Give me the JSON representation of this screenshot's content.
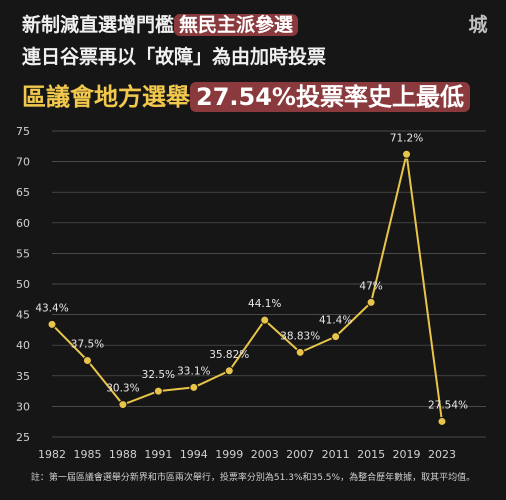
{
  "headline": {
    "line1_plain": "新制減直選增門檻",
    "line1_highlight": "無民主派參選",
    "line2": "連日谷票再以「故障」為由加時投票",
    "line3_plain": "區議會地方選舉",
    "line3_highlight": "27.54%投票率史上最低"
  },
  "logo_text": "城",
  "footnote": "註：第一屆區議會選舉分新界和市區兩次舉行，投票率分別為51.3%和35.5%，為整合歷年數據，取其平均值。",
  "colors": {
    "background": "#161616",
    "line": "#e8c44a",
    "highlight_box": "#8a3a3c",
    "headline_accent": "#f2c94c",
    "grid": "#5a5a5a"
  },
  "chart_data": {
    "type": "line",
    "x": [
      "1982",
      "1985",
      "1988",
      "1991",
      "1994",
      "1999",
      "2003",
      "2007",
      "2011",
      "2015",
      "2019",
      "2023"
    ],
    "values": [
      43.4,
      37.5,
      30.3,
      32.5,
      33.1,
      35.82,
      44.1,
      38.83,
      41.4,
      47,
      71.2,
      27.54
    ],
    "data_labels": [
      "43.4%",
      "37.5%",
      "30.3%",
      "32.5%",
      "33.1%",
      "35.82%",
      "44.1%",
      "38.83%",
      "41.4%",
      "47%",
      "71.2%",
      "27.54%"
    ],
    "yticks": [
      25,
      30,
      35,
      40,
      45,
      50,
      55,
      60,
      65,
      70,
      75
    ],
    "ylim": [
      25,
      75
    ],
    "grid": "horizontal",
    "title": "",
    "xlabel": "",
    "ylabel": ""
  }
}
